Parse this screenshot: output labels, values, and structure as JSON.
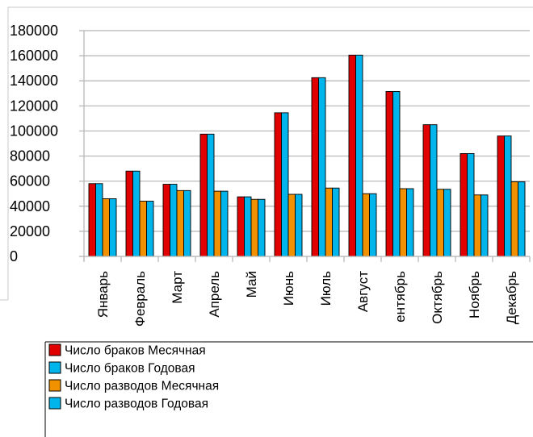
{
  "chart_data": {
    "type": "bar",
    "title": "",
    "xlabel": "",
    "ylabel": "",
    "ylim": [
      0,
      180000
    ],
    "yticks": [
      0,
      20000,
      40000,
      60000,
      80000,
      100000,
      120000,
      140000,
      160000,
      180000
    ],
    "grid": true,
    "legend_position": "bottom-left",
    "categories": [
      "Январь",
      "Февраль",
      "Март",
      "Апрель",
      "Май",
      "Июнь",
      "Июль",
      "Август",
      "ентябрь",
      "Октябрь",
      "Ноябрь",
      "Декабрь"
    ],
    "series": [
      {
        "name": "Число браков Месячная",
        "color": "#e00000",
        "values": [
          58000,
          68000,
          57500,
          97500,
          47500,
          114500,
          142500,
          160500,
          131500,
          105000,
          82000,
          96000
        ]
      },
      {
        "name": "Число браков Годовая",
        "color": "#00b4ec",
        "values": [
          58000,
          68000,
          57500,
          97500,
          47500,
          114500,
          142500,
          160500,
          131500,
          105000,
          82000,
          96000
        ]
      },
      {
        "name": "Число разводов Месячная",
        "color": "#f29100",
        "values": [
          46000,
          44000,
          52500,
          52000,
          45500,
          49500,
          54500,
          50000,
          54000,
          53500,
          49000,
          59500
        ]
      },
      {
        "name": "Число разводов Годовая",
        "color": "#00b4ec",
        "values": [
          46000,
          44000,
          52500,
          52000,
          45500,
          49500,
          54500,
          50000,
          54000,
          53500,
          49000,
          59500
        ]
      }
    ]
  }
}
